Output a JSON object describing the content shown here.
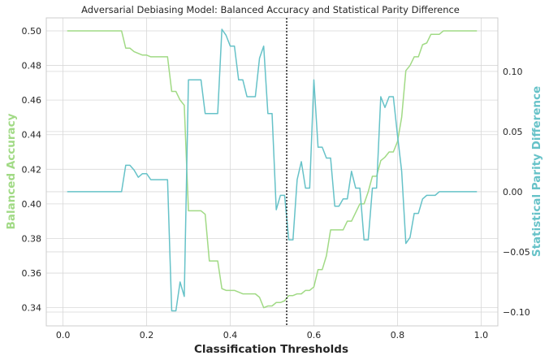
{
  "chart_data": {
    "type": "line",
    "title": "Adversarial Debiasing Model: Balanced Accuracy and Statistical Parity Difference",
    "xlabel": "Classification Thresholds",
    "ylabel_left": "Balanced Accuracy",
    "ylabel_right": "Statistical Parity Difference",
    "xlim": [
      -0.04,
      1.04
    ],
    "ylim_left": [
      0.3295,
      0.5075
    ],
    "ylim_right": [
      -0.1115,
      0.1445
    ],
    "x_ticks": [
      0.0,
      0.2,
      0.4,
      0.6,
      0.8,
      1.0
    ],
    "x_tick_labels": [
      "0.0",
      "0.2",
      "0.4",
      "0.6",
      "0.8",
      "1.0"
    ],
    "y_left_ticks": [
      0.34,
      0.36,
      0.38,
      0.4,
      0.42,
      0.44,
      0.46,
      0.48,
      0.5
    ],
    "y_left_tick_labels": [
      "0.34",
      "0.36",
      "0.38",
      "0.40",
      "0.42",
      "0.44",
      "0.46",
      "0.48",
      "0.50"
    ],
    "y_right_ticks": [
      -0.1,
      -0.05,
      0.0,
      0.05,
      0.1
    ],
    "y_right_tick_labels": [
      "−0.10",
      "−0.05",
      "0.00",
      "0.05",
      "0.10"
    ],
    "grid": true,
    "vline_x": 0.535,
    "colors": {
      "balanced_accuracy": "#a1da85",
      "statistical_parity": "#66c2c8",
      "vline": "#222222",
      "grid": "#d8d8d8",
      "spine": "#cccccc"
    },
    "series": [
      {
        "axis": "left",
        "x": [
          0.01,
          0.02,
          0.03,
          0.04,
          0.05,
          0.06,
          0.07,
          0.08,
          0.09,
          0.1,
          0.11,
          0.12,
          0.13,
          0.14,
          0.15,
          0.16,
          0.17,
          0.18,
          0.19,
          0.2,
          0.21,
          0.22,
          0.23,
          0.24,
          0.25,
          0.26,
          0.27,
          0.28,
          0.29,
          0.3,
          0.31,
          0.32,
          0.33,
          0.34,
          0.35,
          0.36,
          0.37,
          0.38,
          0.39,
          0.4,
          0.41,
          0.42,
          0.43,
          0.44,
          0.45,
          0.46,
          0.47,
          0.48,
          0.49,
          0.5,
          0.51,
          0.52,
          0.53,
          0.54,
          0.55,
          0.56,
          0.57,
          0.58,
          0.59,
          0.6,
          0.61,
          0.62,
          0.63,
          0.64,
          0.65,
          0.66,
          0.67,
          0.68,
          0.69,
          0.7,
          0.71,
          0.72,
          0.73,
          0.74,
          0.75,
          0.76,
          0.77,
          0.78,
          0.79,
          0.8,
          0.81,
          0.82,
          0.83,
          0.84,
          0.85,
          0.86,
          0.87,
          0.88,
          0.89,
          0.9,
          0.91,
          0.92,
          0.93,
          0.94,
          0.95,
          0.96,
          0.97,
          0.98,
          0.99
        ],
        "values": [
          0.5,
          0.5,
          0.5,
          0.5,
          0.5,
          0.5,
          0.5,
          0.5,
          0.5,
          0.5,
          0.5,
          0.5,
          0.5,
          0.5,
          0.49,
          0.49,
          0.488,
          0.487,
          0.486,
          0.486,
          0.485,
          0.485,
          0.485,
          0.485,
          0.485,
          0.465,
          0.465,
          0.46,
          0.457,
          0.396,
          0.396,
          0.396,
          0.396,
          0.394,
          0.367,
          0.367,
          0.367,
          0.351,
          0.35,
          0.35,
          0.35,
          0.349,
          0.348,
          0.348,
          0.348,
          0.348,
          0.346,
          0.34,
          0.341,
          0.341,
          0.343,
          0.343,
          0.344,
          0.347,
          0.347,
          0.348,
          0.348,
          0.35,
          0.35,
          0.352,
          0.362,
          0.362,
          0.37,
          0.385,
          0.385,
          0.385,
          0.385,
          0.39,
          0.39,
          0.395,
          0.4,
          0.4,
          0.407,
          0.416,
          0.416,
          0.425,
          0.427,
          0.43,
          0.43,
          0.436,
          0.45,
          0.477,
          0.48,
          0.485,
          0.485,
          0.492,
          0.493,
          0.498,
          0.498,
          0.498,
          0.5,
          0.5,
          0.5,
          0.5,
          0.5,
          0.5,
          0.5,
          0.5,
          0.5
        ]
      },
      {
        "axis": "right",
        "x": [
          0.01,
          0.02,
          0.03,
          0.04,
          0.05,
          0.06,
          0.07,
          0.08,
          0.09,
          0.1,
          0.11,
          0.12,
          0.13,
          0.14,
          0.15,
          0.16,
          0.17,
          0.18,
          0.19,
          0.2,
          0.21,
          0.22,
          0.23,
          0.24,
          0.25,
          0.26,
          0.27,
          0.28,
          0.29,
          0.3,
          0.31,
          0.32,
          0.33,
          0.34,
          0.35,
          0.36,
          0.37,
          0.38,
          0.39,
          0.4,
          0.41,
          0.42,
          0.43,
          0.44,
          0.45,
          0.46,
          0.47,
          0.48,
          0.49,
          0.5,
          0.51,
          0.52,
          0.53,
          0.54,
          0.55,
          0.56,
          0.57,
          0.58,
          0.59,
          0.6,
          0.61,
          0.62,
          0.63,
          0.64,
          0.65,
          0.66,
          0.67,
          0.68,
          0.69,
          0.7,
          0.71,
          0.72,
          0.73,
          0.74,
          0.75,
          0.76,
          0.77,
          0.78,
          0.79,
          0.8,
          0.81,
          0.82,
          0.83,
          0.84,
          0.85,
          0.86,
          0.87,
          0.88,
          0.89,
          0.9,
          0.91,
          0.92,
          0.93,
          0.94,
          0.95,
          0.96,
          0.97,
          0.98,
          0.99
        ],
        "values": [
          0.0,
          0.0,
          0.0,
          0.0,
          0.0,
          0.0,
          0.0,
          0.0,
          0.0,
          0.0,
          0.0,
          0.0,
          0.0,
          0.0,
          0.022,
          0.022,
          0.018,
          0.012,
          0.015,
          0.015,
          0.01,
          0.01,
          0.01,
          0.01,
          0.01,
          -0.099,
          -0.099,
          -0.075,
          -0.087,
          0.093,
          0.093,
          0.093,
          0.093,
          0.065,
          0.065,
          0.065,
          0.065,
          0.135,
          0.13,
          0.121,
          0.121,
          0.093,
          0.093,
          0.079,
          0.079,
          0.079,
          0.111,
          0.121,
          0.065,
          0.065,
          -0.015,
          -0.003,
          -0.003,
          -0.04,
          -0.04,
          0.01,
          0.025,
          0.003,
          0.003,
          0.093,
          0.037,
          0.037,
          0.028,
          0.028,
          -0.012,
          -0.012,
          -0.006,
          -0.006,
          0.017,
          0.003,
          0.003,
          -0.04,
          -0.04,
          0.003,
          0.003,
          0.079,
          0.07,
          0.079,
          0.079,
          0.047,
          0.017,
          -0.043,
          -0.038,
          -0.018,
          -0.018,
          -0.006,
          -0.003,
          -0.003,
          -0.003,
          0.0,
          0.0,
          0.0,
          0.0,
          0.0,
          0.0,
          0.0,
          0.0,
          0.0,
          0.0
        ]
      }
    ]
  }
}
